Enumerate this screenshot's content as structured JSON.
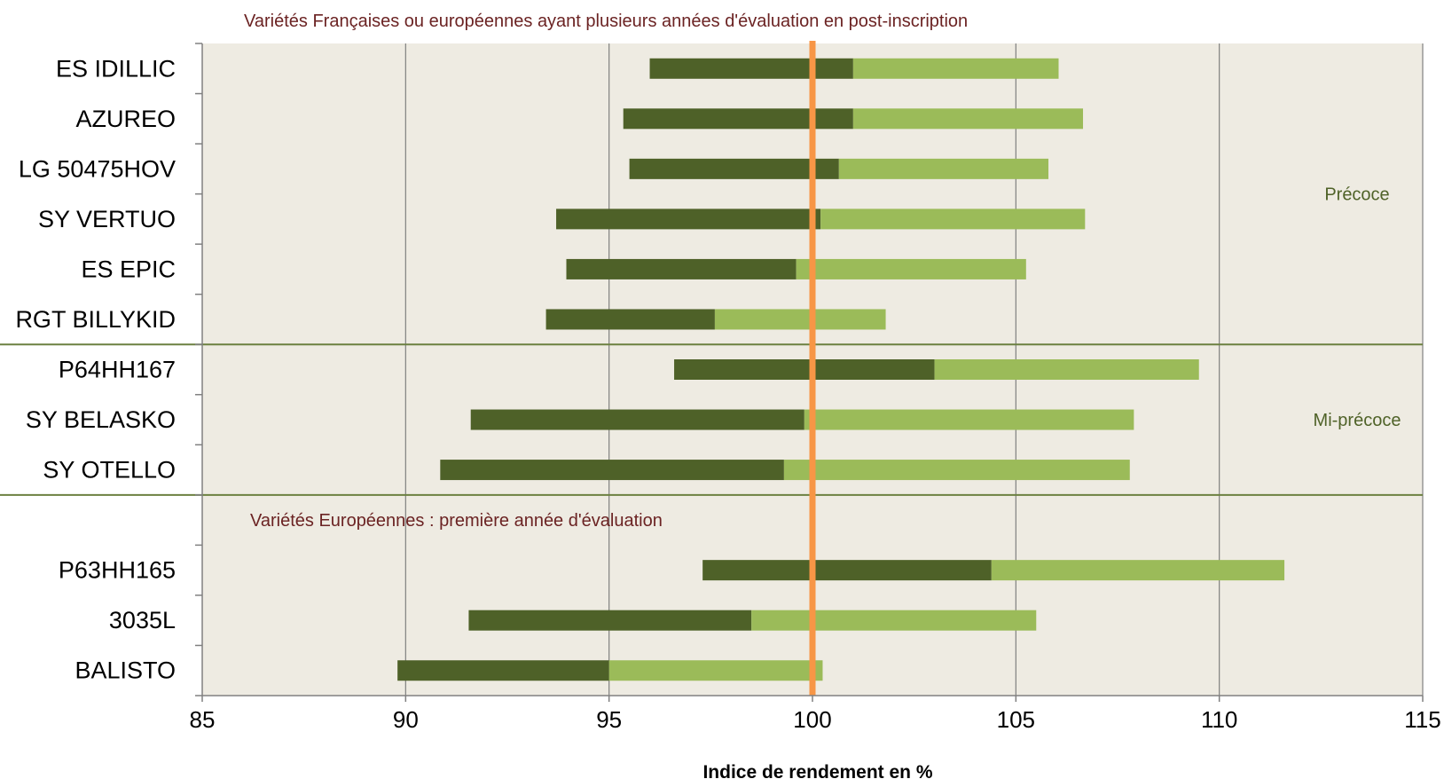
{
  "chart_data": {
    "type": "bar",
    "orientation": "horizontal",
    "title": "Variétés Françaises ou européennes ayant plusieurs années d'évaluation en post-inscription",
    "subtitle": "Variétés Européennes : première année d'évaluation",
    "xlabel": "Indice de rendement en %",
    "xlim": [
      85,
      115
    ],
    "xticks": [
      "85",
      "90",
      "95",
      "100",
      "105",
      "110",
      "115"
    ],
    "reference_value": 100,
    "grid": true,
    "groups": [
      {
        "label": "Précoce",
        "start_row": 0,
        "end_row": 5
      },
      {
        "label": "Mi-précoce",
        "start_row": 6,
        "end_row": 8
      }
    ],
    "categories": [
      "ES IDILLIC",
      "AZUREO",
      "LG 50475HOV",
      "SY VERTUO",
      "ES EPIC",
      "RGT BILLYKID",
      "P64HH167",
      "SY BELASKO",
      "SY OTELLO",
      "",
      "P63HH165",
      "3035L",
      "BALISTO"
    ],
    "series": [
      {
        "values": [
          [
            96.0,
            101.0
          ],
          [
            95.35,
            101.0
          ],
          [
            95.5,
            100.65
          ],
          [
            93.7,
            100.2
          ],
          [
            93.95,
            99.6
          ],
          [
            93.45,
            97.6
          ],
          [
            96.6,
            103.0
          ],
          [
            91.6,
            99.8
          ],
          [
            90.85,
            99.3
          ],
          null,
          [
            97.3,
            104.4
          ],
          [
            91.55,
            98.5
          ],
          [
            89.8,
            95.0
          ]
        ],
        "color": "#4e6128"
      },
      {
        "values": [
          [
            101.0,
            106.05
          ],
          [
            101.0,
            106.65
          ],
          [
            100.65,
            105.8
          ],
          [
            100.2,
            106.7
          ],
          [
            99.6,
            105.25
          ],
          [
            97.6,
            101.8
          ],
          [
            103.0,
            109.5
          ],
          [
            99.8,
            107.9
          ],
          [
            99.3,
            107.8
          ],
          null,
          [
            104.4,
            111.6
          ],
          [
            98.5,
            105.5
          ],
          [
            95.0,
            100.25
          ]
        ],
        "color": "#9bbb59"
      }
    ],
    "colors": {
      "reference_line": "#f79646",
      "plot_background": "#eeebe2",
      "annotation_text": "#6b2323",
      "group_text": "#4f6228",
      "separator": "#6b8040",
      "grid": "#808080"
    }
  }
}
